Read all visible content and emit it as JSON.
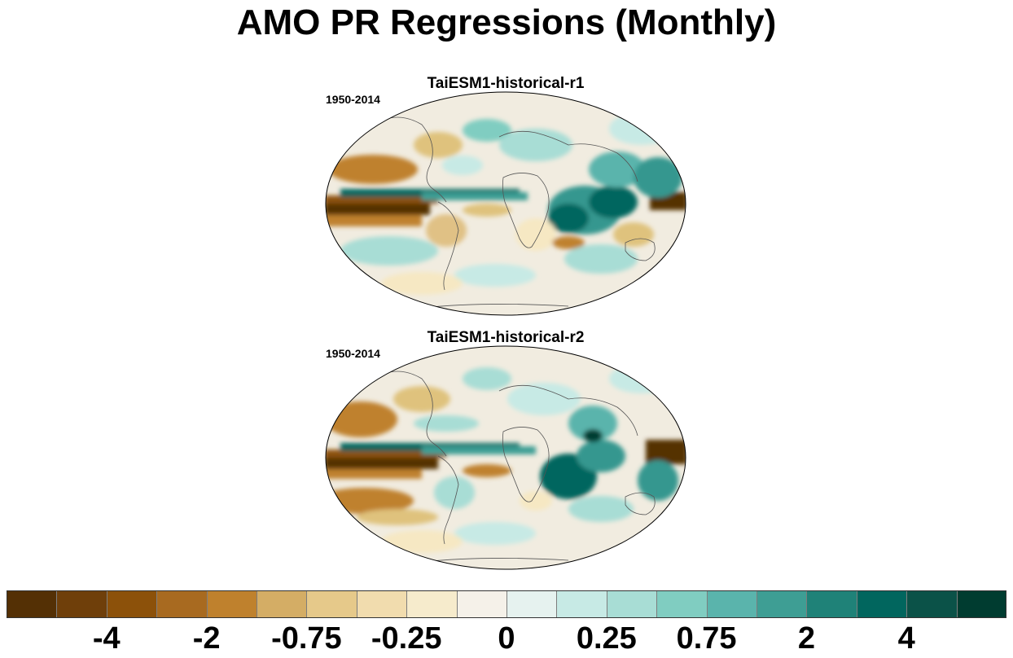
{
  "title": "AMO PR Regressions (Monthly)",
  "panels": [
    {
      "title": "TaiESM1-historical-r1",
      "period": "1950-2014"
    },
    {
      "title": "TaiESM1-historical-r2",
      "period": "1950-2014"
    }
  ],
  "colorbar": {
    "colors": [
      "#543005",
      "#6f3f0a",
      "#8c510a",
      "#a86a20",
      "#bf812d",
      "#d4ad65",
      "#e6c98a",
      "#f1dcae",
      "#f6ebcc",
      "#f5f1e9",
      "#e6f2ef",
      "#c7eae5",
      "#a8ddd5",
      "#80cdc1",
      "#5ab4ac",
      "#3e9e94",
      "#1f8278",
      "#01665e",
      "#0b5248",
      "#003c30"
    ],
    "labels": [
      {
        "text": "-4",
        "after_box": 2
      },
      {
        "text": "-2",
        "after_box": 4
      },
      {
        "text": "-0.75",
        "after_box": 6
      },
      {
        "text": "-0.25",
        "after_box": 8
      },
      {
        "text": "0",
        "after_box": 10
      },
      {
        "text": "0.25",
        "after_box": 12
      },
      {
        "text": "0.75",
        "after_box": 14
      },
      {
        "text": "2",
        "after_box": 16
      },
      {
        "text": "4",
        "after_box": 18
      }
    ]
  }
}
